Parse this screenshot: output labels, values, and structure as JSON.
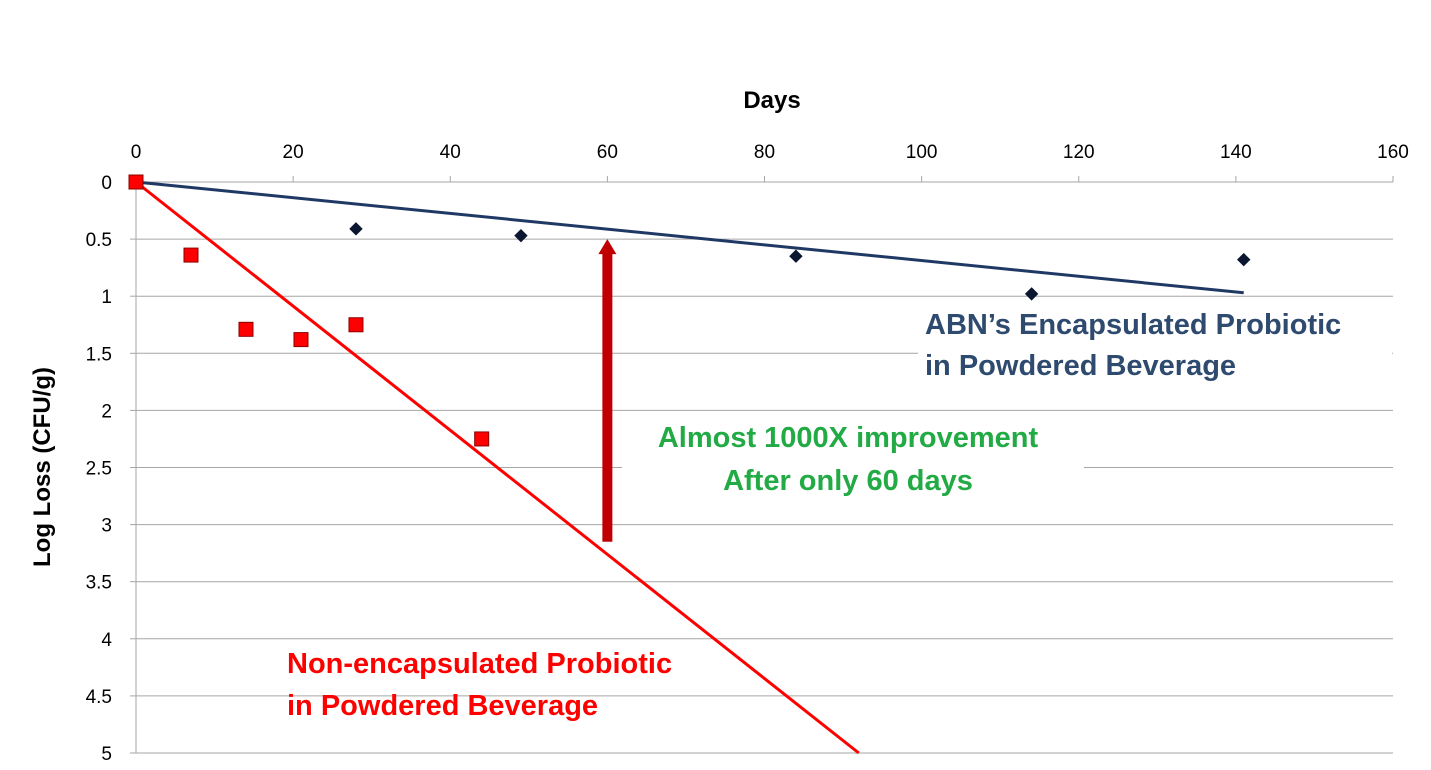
{
  "chart_data": {
    "type": "scatter",
    "xlabel": "Days",
    "ylabel": "Log Loss (CFU/g)",
    "xlim": [
      0,
      160
    ],
    "ylim": [
      0,
      5
    ],
    "y_inverted": true,
    "x_axis_position": "top",
    "x_ticks": [
      "0",
      "20",
      "40",
      "60",
      "80",
      "100",
      "120",
      "140",
      "160"
    ],
    "y_ticks": [
      "0",
      "0.5",
      "1",
      "1.5",
      "2",
      "2.5",
      "3",
      "3.5",
      "4",
      "4.5",
      "5"
    ],
    "grid": "horizontal",
    "series": [
      {
        "color": "#1f3864",
        "marker": "diamond",
        "points": [
          [
            0,
            0
          ],
          [
            28,
            0.41
          ],
          [
            49,
            0.47
          ],
          [
            84,
            0.65
          ],
          [
            114,
            0.98
          ],
          [
            141,
            0.68
          ]
        ],
        "trendline": [
          [
            0,
            0
          ],
          [
            141,
            0.97
          ]
        ]
      },
      {
        "color": "#ff0000",
        "marker": "square",
        "points": [
          [
            0,
            0
          ],
          [
            7,
            0.64
          ],
          [
            14,
            1.29
          ],
          [
            21,
            1.38
          ],
          [
            28,
            1.25
          ],
          [
            44,
            2.25
          ]
        ],
        "trendline": [
          [
            0,
            0
          ],
          [
            92,
            5
          ]
        ]
      }
    ],
    "annotations": {
      "encapsulated_line1": "ABN’s Encapsulated Probiotic",
      "encapsulated_line2": "in Powdered Beverage",
      "non_encapsulated_line1": "Non-encapsulated Probiotic",
      "non_encapsulated_line2": "in Powdered Beverage",
      "improvement_line1": "Almost 1000X improvement",
      "improvement_line2": "After only 60 days"
    },
    "arrow": {
      "x": 60,
      "y_from": 3.15,
      "y_to": 0.5,
      "color": "#c00000"
    },
    "annotation_colors": {
      "encapsulated": "#2e4a6e",
      "non_encapsulated": "#ff0000",
      "improvement": "#22aa44"
    }
  }
}
